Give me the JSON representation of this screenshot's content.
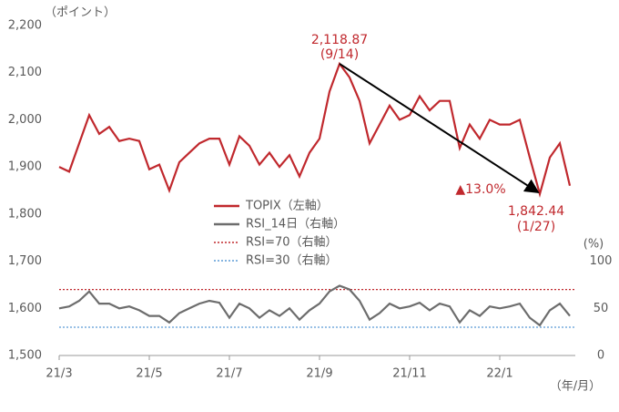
{
  "chart_data": {
    "type": "line",
    "y_label": "（ポイント）",
    "y2_label": "(%)",
    "x_label": "（年/月）",
    "categories": [
      "21/3",
      null,
      null,
      null,
      null,
      null,
      null,
      null,
      null,
      "21/5",
      null,
      null,
      null,
      null,
      null,
      null,
      null,
      "21/7",
      null,
      null,
      null,
      null,
      null,
      null,
      null,
      null,
      "21/9",
      null,
      null,
      null,
      null,
      null,
      null,
      null,
      null,
      "21/11",
      null,
      null,
      null,
      null,
      null,
      null,
      null,
      null,
      "22/1",
      null,
      null,
      null,
      null,
      null,
      null,
      null
    ],
    "series": [
      {
        "name": "TOPIX（左軸）",
        "color": "#c0282d",
        "axis": "y",
        "values": [
          1900,
          1890,
          1950,
          2010,
          1970,
          1985,
          1955,
          1960,
          1955,
          1895,
          1905,
          1850,
          1910,
          1930,
          1950,
          1960,
          1960,
          1905,
          1965,
          1945,
          1905,
          1930,
          1900,
          1925,
          1880,
          1930,
          1960,
          2060,
          2118.87,
          2090,
          2040,
          1950,
          1990,
          2030,
          2000,
          2010,
          2050,
          2020,
          2040,
          2040,
          1940,
          1990,
          1960,
          2000,
          1990,
          1990,
          2000,
          1920,
          1842.44,
          1920,
          1950,
          1860
        ]
      },
      {
        "name": "RSI_14日（右軸）",
        "color": "#6d6d6d",
        "axis": "y2",
        "values": [
          50,
          52,
          58,
          68,
          55,
          55,
          50,
          52,
          48,
          42,
          42,
          35,
          45,
          50,
          55,
          58,
          56,
          40,
          55,
          50,
          40,
          48,
          42,
          50,
          38,
          48,
          55,
          68,
          74,
          70,
          58,
          38,
          45,
          55,
          50,
          52,
          56,
          48,
          55,
          52,
          35,
          48,
          42,
          52,
          50,
          52,
          55,
          40,
          32,
          48,
          55,
          42
        ]
      }
    ],
    "reference_lines": [
      {
        "name": "RSI=70（右軸）",
        "value": 70,
        "color": "#c0282d",
        "axis": "y2"
      },
      {
        "name": "RSI=30（右軸）",
        "value": 30,
        "color": "#5b9bd5",
        "axis": "y2"
      }
    ],
    "annotations": [
      "2,118.87",
      "(9/14)",
      "1,842.44",
      "(1/27)",
      "▲13.0%"
    ],
    "ylim": [
      1500,
      2200
    ],
    "yticks": [
      {
        "value": 1500,
        "label": "1,500"
      },
      {
        "value": 1600,
        "label": "1,600"
      },
      {
        "value": 1700,
        "label": "1,700"
      },
      {
        "value": 1800,
        "label": "1,800"
      },
      {
        "value": 1900,
        "label": "1,900"
      },
      {
        "value": 2000,
        "label": "2,000"
      },
      {
        "value": 2100,
        "label": "2,100"
      },
      {
        "value": 2200,
        "label": "2,200"
      }
    ],
    "y2lim": [
      0,
      350
    ],
    "y2ticks": [
      0,
      50,
      100
    ],
    "grid": false
  }
}
